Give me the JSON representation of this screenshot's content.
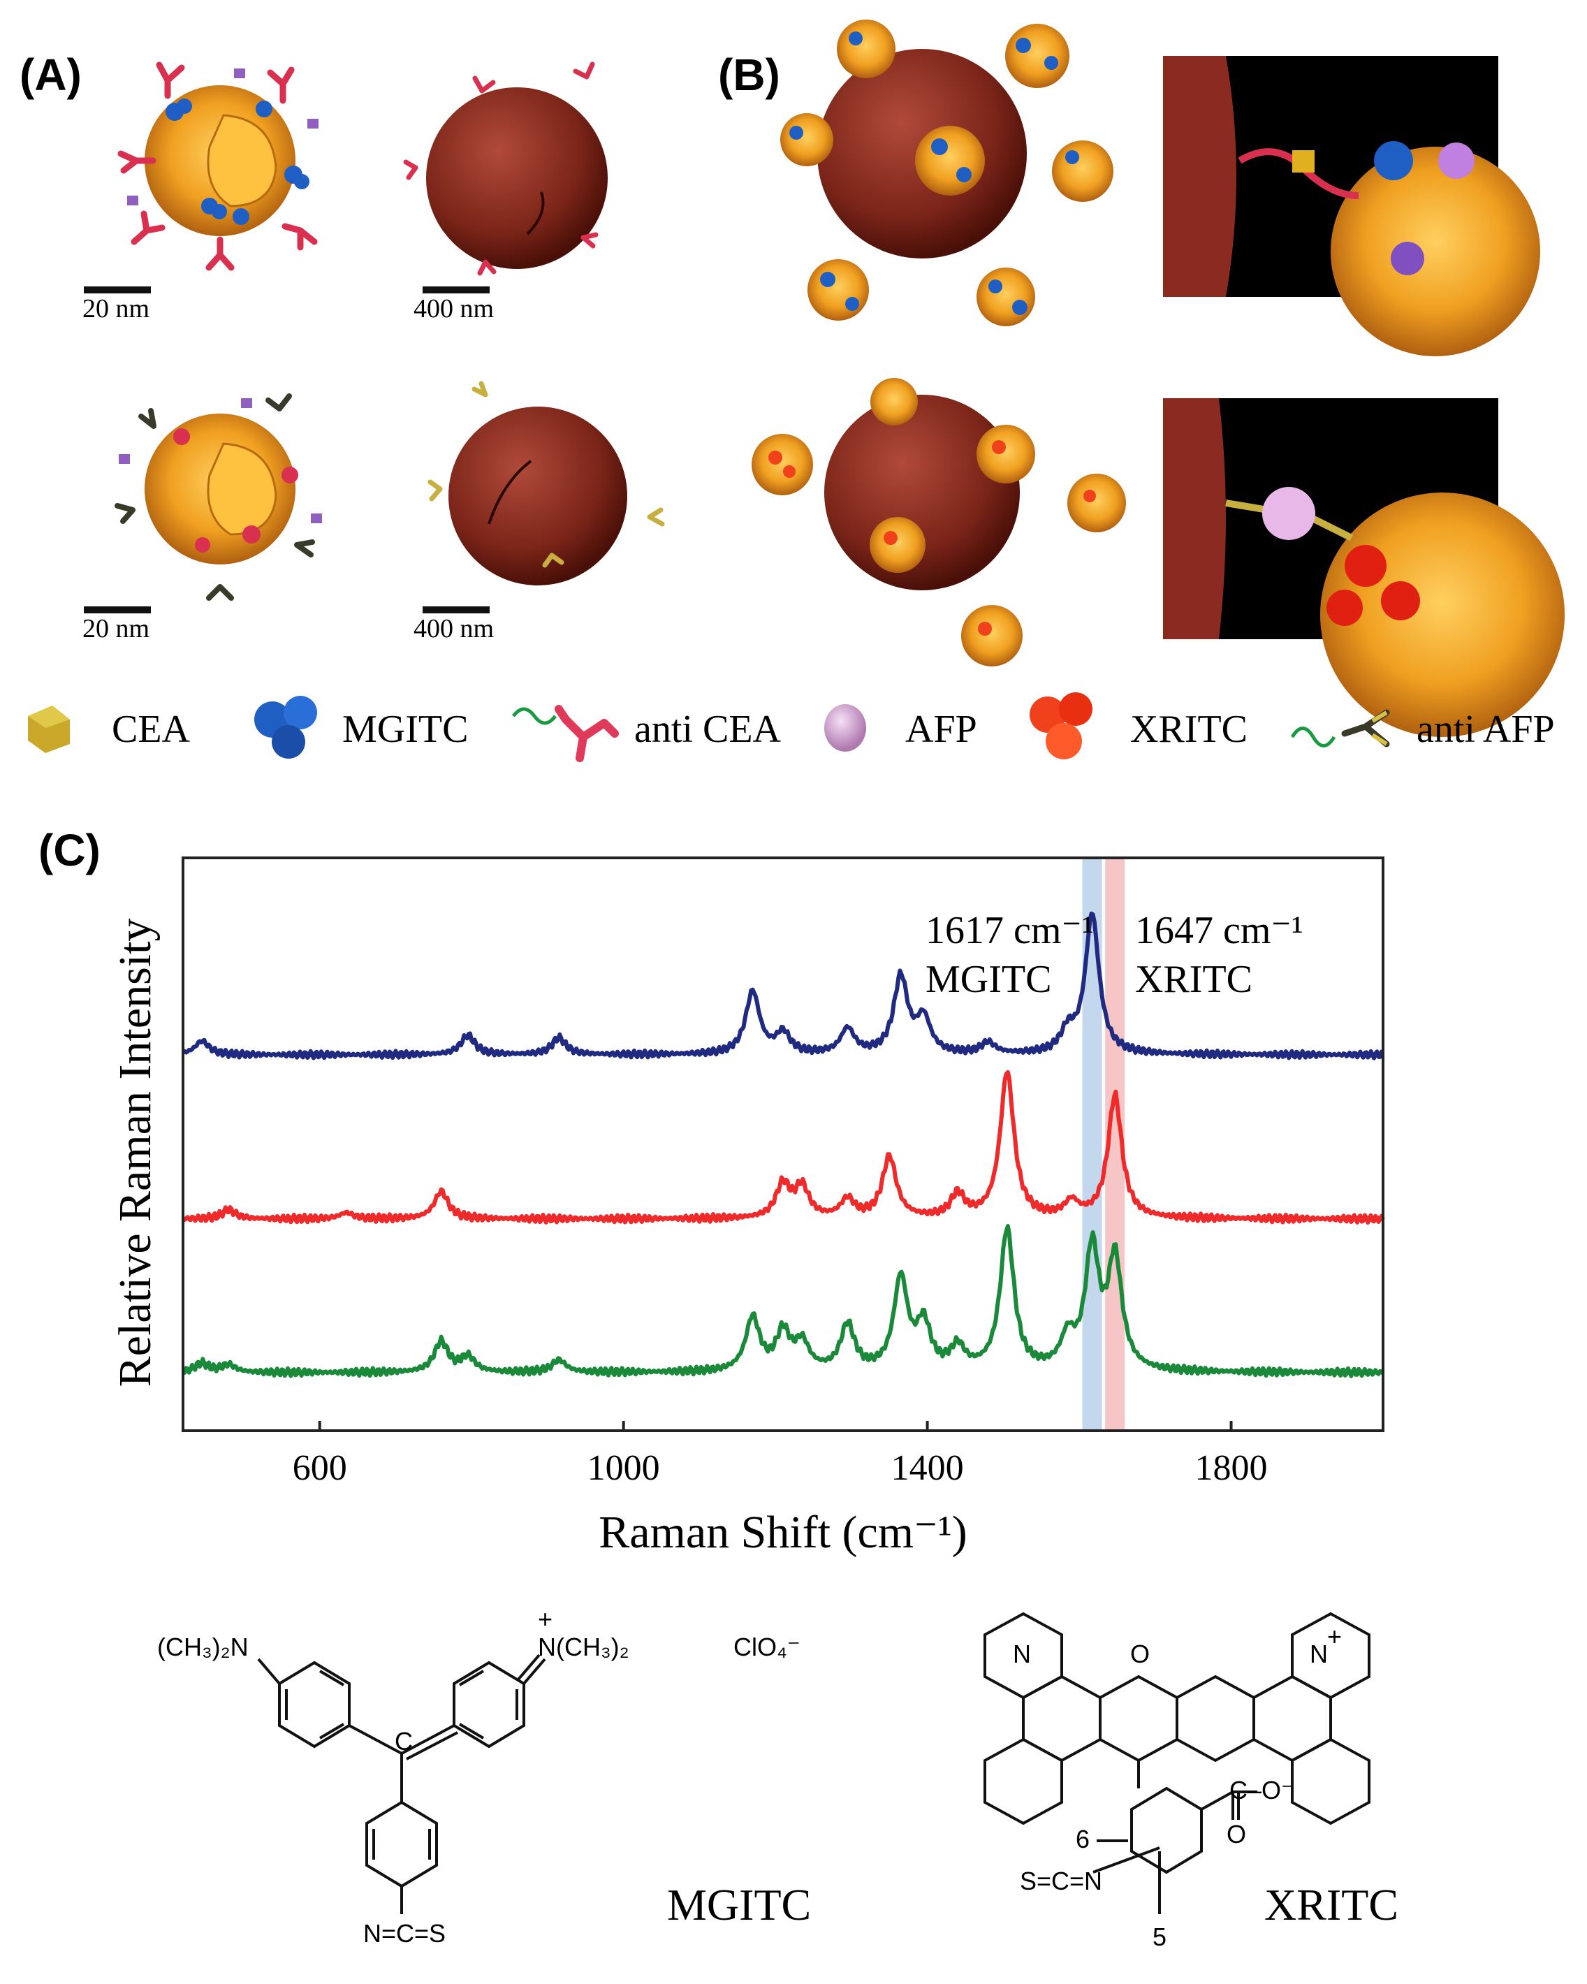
{
  "panels": {
    "a": {
      "label": "(A)"
    },
    "b": {
      "label": "(B)"
    },
    "c": {
      "label": "(C)"
    }
  },
  "scale_labels": {
    "nano_top": "20 nm",
    "micro_top": "400 nm",
    "nano_bottom": "20 nm",
    "micro_bottom": "400 nm"
  },
  "legend": [
    {
      "label": "CEA",
      "icon": "cea-cube-icon",
      "color": "#c9a82a"
    },
    {
      "label": "MGITC",
      "icon": "mgitc-cluster-icon",
      "color": "#1f5fc4"
    },
    {
      "label": "anti CEA",
      "icon": "anti-cea-antibody-icon",
      "color": "#e03a5a"
    },
    {
      "label": "AFP",
      "icon": "afp-sphere-icon",
      "color": "#d9a8d8"
    },
    {
      "label": "XRITC",
      "icon": "xritc-cluster-icon",
      "color": "#f0401c"
    },
    {
      "label": "anti AFP",
      "icon": "anti-afp-antibody-icon",
      "color": "#c8b040"
    }
  ],
  "chart_data": {
    "type": "line",
    "title": "",
    "xlabel": "Raman Shift (cm⁻¹)",
    "ylabel": "Relative Raman Intensity",
    "xlim": [
      420,
      2000
    ],
    "xticks": [
      600,
      1000,
      1400,
      1800
    ],
    "annotations": [
      {
        "text": "1617 cm⁻¹",
        "sub": "MGITC",
        "x": 1617,
        "band_color": "#b8d0ea"
      },
      {
        "text": "1647 cm⁻¹",
        "sub": "XRITC",
        "x": 1647,
        "band_color": "#f4bcbc"
      }
    ],
    "series": [
      {
        "color": "#1f2a80",
        "baseline": 0.0,
        "peaks": [
          [
            445,
            0.1
          ],
          [
            795,
            0.14
          ],
          [
            915,
            0.12
          ],
          [
            1170,
            0.45
          ],
          [
            1210,
            0.15
          ],
          [
            1295,
            0.18
          ],
          [
            1365,
            0.55
          ],
          [
            1395,
            0.25
          ],
          [
            1480,
            0.08
          ],
          [
            1585,
            0.15
          ],
          [
            1617,
            1.0
          ]
        ]
      },
      {
        "color": "#ee2a2a",
        "baseline": 0.0,
        "peaks": [
          [
            480,
            0.06
          ],
          [
            635,
            0.04
          ],
          [
            760,
            0.18
          ],
          [
            1210,
            0.22
          ],
          [
            1235,
            0.2
          ],
          [
            1295,
            0.12
          ],
          [
            1350,
            0.4
          ],
          [
            1440,
            0.15
          ],
          [
            1505,
            0.95
          ],
          [
            1590,
            0.1
          ],
          [
            1647,
            0.8
          ]
        ]
      },
      {
        "color": "#1a8a3a",
        "baseline": 0.0,
        "peaks": [
          [
            445,
            0.06
          ],
          [
            480,
            0.05
          ],
          [
            760,
            0.2
          ],
          [
            795,
            0.1
          ],
          [
            915,
            0.08
          ],
          [
            1170,
            0.35
          ],
          [
            1210,
            0.25
          ],
          [
            1235,
            0.18
          ],
          [
            1295,
            0.3
          ],
          [
            1365,
            0.6
          ],
          [
            1395,
            0.3
          ],
          [
            1440,
            0.15
          ],
          [
            1505,
            0.92
          ],
          [
            1585,
            0.2
          ],
          [
            1617,
            0.78
          ],
          [
            1647,
            0.72
          ]
        ]
      }
    ]
  },
  "chemistry": {
    "mgitc": {
      "name": "MGITC",
      "left_group": "(CH₃)₂N",
      "right_group": "N(CH₃)₂",
      "counter_ion": "ClO₄⁻",
      "isothiocyanate": "N=C=S",
      "plus": "+",
      "central_carbon": "C"
    },
    "xritc": {
      "name": "XRITC",
      "carboxylate": "C–O⁻",
      "carbonyl": "O",
      "ring_o": "O",
      "left_n": "N",
      "right_n": "N",
      "plus": "+",
      "isothiocyanate": "S=C=N",
      "pos6": "6",
      "pos5": "5"
    }
  }
}
